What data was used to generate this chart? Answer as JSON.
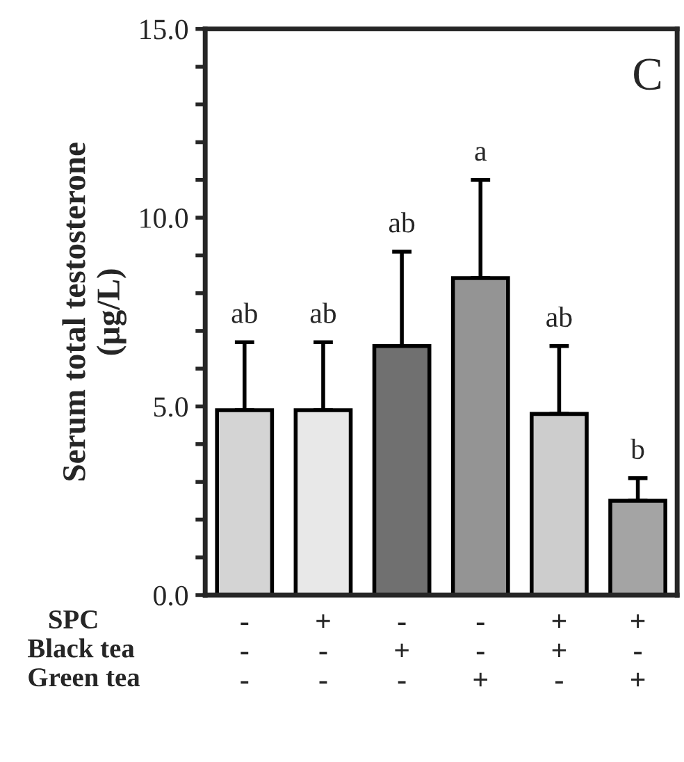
{
  "chart_data": {
    "type": "bar",
    "ylabel": "Serum total testosterone\n(µg/L)",
    "categories": [
      "-\n-\n-",
      "+\n-\n-",
      "-\n+\n-",
      "-\n-\n+",
      "+\n+\n-",
      "+\n-\n+"
    ],
    "values": [
      4.9,
      4.9,
      6.6,
      8.4,
      4.8,
      2.5
    ],
    "errors": [
      1.8,
      1.8,
      2.5,
      2.6,
      1.8,
      0.6
    ],
    "colors": [
      "#d4d4d4",
      "#e8e8e8",
      "#707070",
      "#949494",
      "#cdcdcd",
      "#a4a4a4"
    ],
    "ylim": [
      0,
      15
    ],
    "yticks": [
      {
        "value": 0,
        "label": "0.0"
      },
      {
        "value": 1,
        "label": null
      },
      {
        "value": 2,
        "label": null
      },
      {
        "value": 3,
        "label": null
      },
      {
        "value": 4,
        "label": null
      },
      {
        "value": 5,
        "label": "5.0"
      },
      {
        "value": 6,
        "label": null
      },
      {
        "value": 7,
        "label": null
      },
      {
        "value": 8,
        "label": null
      },
      {
        "value": 9,
        "label": null
      },
      {
        "value": 10,
        "label": "10.0"
      },
      {
        "value": 11,
        "label": null
      },
      {
        "value": 12,
        "label": null
      },
      {
        "value": 13,
        "label": null
      },
      {
        "value": 14,
        "label": null
      },
      {
        "value": 15,
        "label": "15.0"
      }
    ],
    "annotations": [
      "C",
      "ab",
      "ab",
      "ab",
      "a",
      "ab",
      "b",
      "SPC",
      "Black tea",
      "Green tea"
    ],
    "grid": false,
    "legend": false
  }
}
